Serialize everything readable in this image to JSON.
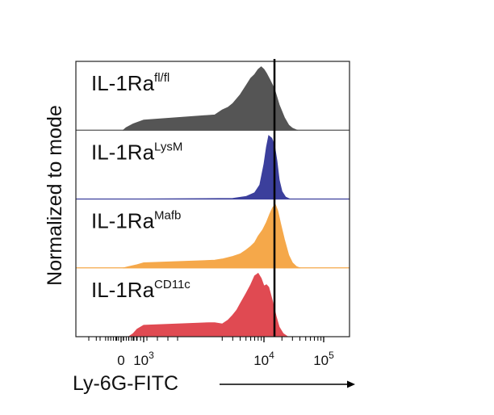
{
  "chart_data": {
    "type": "area",
    "title": "",
    "xlabel": "Ly-6G-FITC",
    "ylabel": "Normalized to mode",
    "x_scale": "biexponential",
    "x_ticks": [
      {
        "value": 0,
        "base": "0",
        "exp": ""
      },
      {
        "value": 1000,
        "base": "10",
        "exp": "3"
      },
      {
        "value": 10000,
        "base": "10",
        "exp": "4"
      },
      {
        "value": 100000,
        "base": "10",
        "exp": "5"
      }
    ],
    "reference_line_x": 15000,
    "series": [
      {
        "name": "IL-1Ra",
        "superscript": "fl/fl",
        "color": "#555555",
        "points": [
          [
            500,
            0
          ],
          [
            550,
            4
          ],
          [
            700,
            10
          ],
          [
            1000,
            16
          ],
          [
            1500,
            24
          ],
          [
            2000,
            32
          ],
          [
            2500,
            36
          ],
          [
            3000,
            42
          ],
          [
            4000,
            56
          ],
          [
            5000,
            70
          ],
          [
            6000,
            82
          ],
          [
            7000,
            88
          ],
          [
            8000,
            96
          ],
          [
            9000,
            100
          ],
          [
            10000,
            96
          ],
          [
            11000,
            90
          ],
          [
            12500,
            80
          ],
          [
            15000,
            65
          ],
          [
            18000,
            40
          ],
          [
            22000,
            20
          ],
          [
            26000,
            8
          ],
          [
            30000,
            3
          ],
          [
            36000,
            0
          ]
        ]
      },
      {
        "name": "IL-1Ra",
        "superscript": "LysM",
        "color": "#3b3f9c",
        "points": [
          [
            1000,
            0
          ],
          [
            3000,
            1
          ],
          [
            5000,
            4
          ],
          [
            7000,
            10
          ],
          [
            8500,
            22
          ],
          [
            10000,
            55
          ],
          [
            11000,
            82
          ],
          [
            12000,
            100
          ],
          [
            13500,
            96
          ],
          [
            15000,
            85
          ],
          [
            16500,
            60
          ],
          [
            18000,
            30
          ],
          [
            20000,
            12
          ],
          [
            23000,
            3
          ],
          [
            27000,
            0
          ]
        ]
      },
      {
        "name": "IL-1Ra",
        "superscript": "Mafb",
        "color": "#f5a84a",
        "points": [
          [
            500,
            0
          ],
          [
            600,
            2
          ],
          [
            800,
            5
          ],
          [
            1000,
            8
          ],
          [
            1500,
            12
          ],
          [
            2000,
            14
          ],
          [
            3000,
            18
          ],
          [
            4000,
            22
          ],
          [
            5000,
            28
          ],
          [
            6000,
            34
          ],
          [
            7000,
            40
          ],
          [
            8000,
            50
          ],
          [
            9500,
            60
          ],
          [
            11000,
            72
          ],
          [
            12500,
            85
          ],
          [
            14000,
            95
          ],
          [
            15500,
            100
          ],
          [
            17000,
            90
          ],
          [
            19000,
            70
          ],
          [
            22000,
            45
          ],
          [
            26000,
            20
          ],
          [
            30000,
            8
          ],
          [
            35000,
            2
          ],
          [
            40000,
            0
          ]
        ]
      },
      {
        "name": "IL-1Ra",
        "superscript": "CD11c",
        "color": "#e04a52",
        "points": [
          [
            600,
            0
          ],
          [
            700,
            5
          ],
          [
            800,
            12
          ],
          [
            1000,
            18
          ],
          [
            1200,
            22
          ],
          [
            1500,
            22
          ],
          [
            2000,
            20
          ],
          [
            2500,
            26
          ],
          [
            3000,
            34
          ],
          [
            3500,
            42
          ],
          [
            4000,
            52
          ],
          [
            5000,
            68
          ],
          [
            6000,
            82
          ],
          [
            7000,
            96
          ],
          [
            8000,
            100
          ],
          [
            9000,
            92
          ],
          [
            10000,
            80
          ],
          [
            11000,
            82
          ],
          [
            12000,
            78
          ],
          [
            14000,
            55
          ],
          [
            16000,
            32
          ],
          [
            18000,
            15
          ],
          [
            21000,
            5
          ],
          [
            25000,
            0
          ]
        ]
      }
    ]
  }
}
